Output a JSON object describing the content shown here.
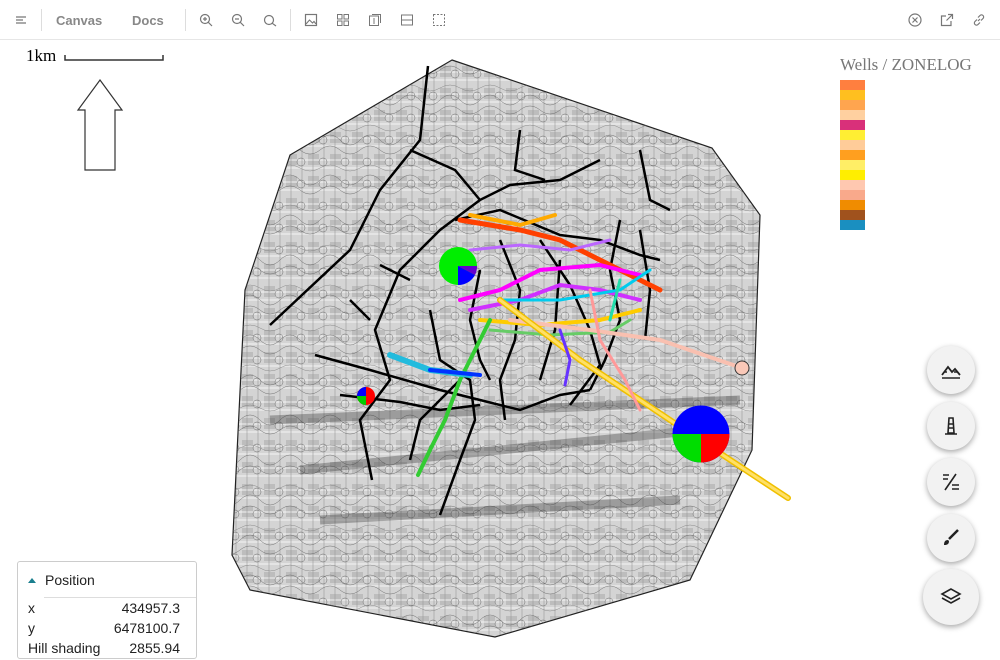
{
  "toolbar": {
    "canvas_label": "Canvas",
    "docs_label": "Docs",
    "icons": [
      "menu-icon",
      "zoom-in-icon",
      "zoom-out-icon",
      "reset-icon",
      "image-icon",
      "grid-icon",
      "layout-icon",
      "split-icon",
      "select-icon",
      "close-icon",
      "external-link-icon",
      "link-icon"
    ]
  },
  "map": {
    "scale_label": "1km",
    "north_arrow": "north-arrow-icon",
    "legend": {
      "title": "Wells / ZONELOG",
      "swatches": [
        "#ff7f3f",
        "#ffbf1f",
        "#ffa54f",
        "#ffd0a0",
        "#d9307a",
        "#ffee33",
        "#ffcc99",
        "#ff9f1f",
        "#ffee66",
        "#ffee00",
        "#ffc8b0",
        "#f9a98b",
        "#f08c00",
        "#a0521d",
        "#1a8fc0"
      ]
    },
    "pie_colors": [
      "#0000ff",
      "#ff0000",
      "#00dd00"
    ]
  },
  "fabs": [
    {
      "name": "terrain-button",
      "icon": "terrain-icon"
    },
    {
      "name": "wells-button",
      "icon": "well-icon"
    },
    {
      "name": "faults-button",
      "icon": "fault-icon"
    },
    {
      "name": "drawing-button",
      "icon": "brush-icon"
    },
    {
      "name": "layers-button",
      "icon": "layers-icon"
    }
  ],
  "position": {
    "title": "Position",
    "rows": [
      {
        "key": "x",
        "value": "434957.3"
      },
      {
        "key": "y",
        "value": "6478100.7"
      },
      {
        "key": "Hill shading",
        "value": "2855.94"
      }
    ]
  }
}
